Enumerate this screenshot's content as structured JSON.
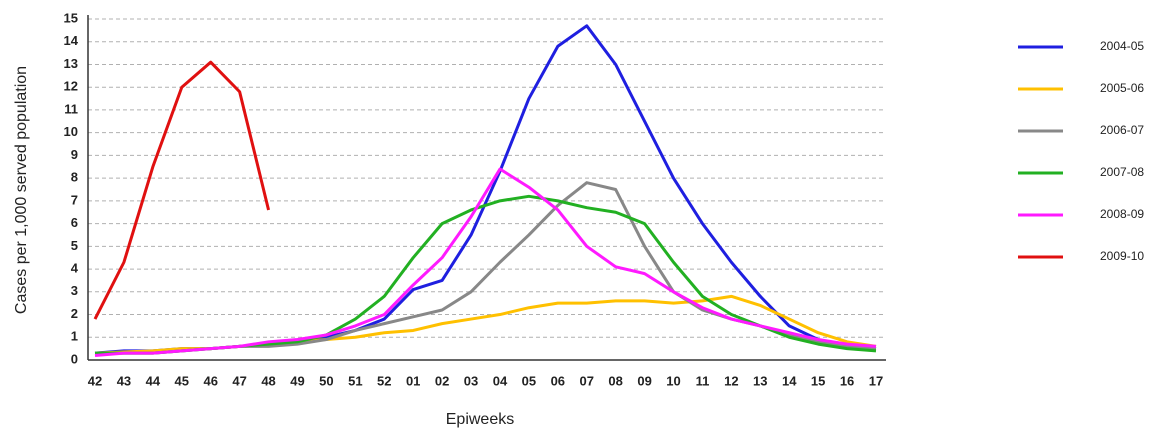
{
  "chart_data": {
    "type": "line",
    "x_label": "Epiweeks",
    "y_label": "Cases per 1,000 served population",
    "categories": [
      "42",
      "43",
      "44",
      "45",
      "46",
      "47",
      "48",
      "49",
      "50",
      "51",
      "52",
      "01",
      "02",
      "03",
      "04",
      "05",
      "06",
      "07",
      "08",
      "09",
      "10",
      "11",
      "12",
      "13",
      "14",
      "15",
      "16",
      "17"
    ],
    "ylim": [
      0,
      15
    ],
    "yticks": [
      0,
      1,
      2,
      3,
      4,
      5,
      6,
      7,
      8,
      9,
      10,
      11,
      12,
      13,
      14,
      15
    ],
    "grid": true,
    "series": [
      {
        "name": "2004-05",
        "color": "#1f1fe0",
        "values": [
          0.3,
          0.4,
          0.4,
          0.5,
          0.5,
          0.6,
          0.7,
          0.8,
          1.0,
          1.3,
          1.8,
          3.1,
          3.5,
          5.5,
          8.3,
          11.5,
          13.8,
          14.7,
          13,
          10.5,
          8,
          6,
          4.3,
          2.8,
          1.5,
          0.9,
          0.6,
          0.5
        ]
      },
      {
        "name": "2005-06",
        "color": "#ffc000",
        "values": [
          0.3,
          0.35,
          0.4,
          0.5,
          0.5,
          0.6,
          0.7,
          0.8,
          0.9,
          1.0,
          1.2,
          1.3,
          1.6,
          1.8,
          2.0,
          2.3,
          2.5,
          2.5,
          2.6,
          2.6,
          2.5,
          2.6,
          2.8,
          2.4,
          1.8,
          1.2,
          0.8,
          0.6
        ]
      },
      {
        "name": "2006-07",
        "color": "#888888",
        "values": [
          0.3,
          0.3,
          0.3,
          0.4,
          0.5,
          0.6,
          0.6,
          0.7,
          0.9,
          1.3,
          1.6,
          1.9,
          2.2,
          3.0,
          4.3,
          5.5,
          6.8,
          7.8,
          7.5,
          5,
          3,
          2.2,
          1.8,
          1.5,
          1.1,
          0.8,
          0.6,
          0.5
        ]
      },
      {
        "name": "2007-08",
        "color": "#22b022",
        "values": [
          0.3,
          0.3,
          0.3,
          0.4,
          0.5,
          0.6,
          0.7,
          0.8,
          1.1,
          1.8,
          2.8,
          4.5,
          6.0,
          6.6,
          7.0,
          7.2,
          7.0,
          6.7,
          6.5,
          6.0,
          4.3,
          2.8,
          2.0,
          1.5,
          1.0,
          0.7,
          0.5,
          0.4
        ]
      },
      {
        "name": "2008-09",
        "color": "#ff1aff",
        "values": [
          0.2,
          0.3,
          0.3,
          0.4,
          0.5,
          0.6,
          0.8,
          0.9,
          1.1,
          1.5,
          2.0,
          3.3,
          4.5,
          6.3,
          8.4,
          7.6,
          6.6,
          5.0,
          4.1,
          3.8,
          3.0,
          2.3,
          1.8,
          1.5,
          1.2,
          0.9,
          0.7,
          0.6
        ]
      },
      {
        "name": "2009-10",
        "color": "#e01010",
        "values": [
          1.8,
          4.3,
          8.5,
          12,
          13.1,
          11.8,
          6.6,
          null,
          null,
          null,
          null,
          null,
          null,
          null,
          null,
          null,
          null,
          null,
          null,
          null,
          null,
          null,
          null,
          null,
          null,
          null,
          null,
          null
        ]
      }
    ]
  }
}
